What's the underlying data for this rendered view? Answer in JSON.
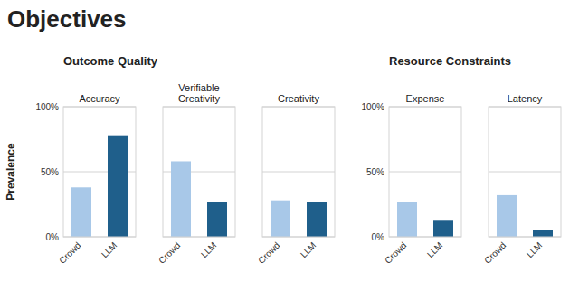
{
  "title": "Objectives",
  "chart_data": [
    {
      "type": "bar",
      "title": "Accuracy",
      "subtitle": "Outcome Quality",
      "ylabel": "Prevalence",
      "categories": [
        "Crowd",
        "LLM"
      ],
      "values": [
        38,
        78
      ],
      "colors": [
        "#a8c8e8",
        "#1f5f8b"
      ],
      "ylim": [
        0,
        100
      ],
      "yticks": [
        {
          "value": 0,
          "label": "0%"
        },
        {
          "value": 50,
          "label": "50%"
        },
        {
          "value": 100,
          "label": "100%"
        }
      ],
      "grid": true
    },
    {
      "type": "bar",
      "title": "Verifiable\nCreativity",
      "categories": [
        "Crowd",
        "LLM"
      ],
      "values": [
        58,
        27
      ],
      "colors": [
        "#a8c8e8",
        "#1f5f8b"
      ],
      "ylim": [
        0,
        100
      ],
      "yticks": [
        0,
        50,
        100
      ],
      "grid": true,
      "tick_labels": "x"
    },
    {
      "type": "bar",
      "title": "Creativity",
      "categories": [
        "Crowd",
        "LLM"
      ],
      "values": [
        28,
        27
      ],
      "colors": [
        "#a8c8e8",
        "#1f5f8b"
      ],
      "ylim": [
        0,
        100
      ],
      "yticks": [
        0,
        50,
        100
      ],
      "grid": true,
      "tick_labels": "x"
    },
    {
      "type": "bar",
      "title": "Expense",
      "subtitle": "Resource Constraints",
      "categories": [
        "Crowd",
        "LLM"
      ],
      "values": [
        27,
        13
      ],
      "colors": [
        "#a8c8e8",
        "#1f5f8b"
      ],
      "ylim": [
        0,
        100
      ],
      "yticks": [
        {
          "value": 0,
          "label": "0%"
        },
        {
          "value": 50,
          "label": "50%"
        },
        {
          "value": 100,
          "label": "100%"
        }
      ],
      "grid": true
    },
    {
      "type": "bar",
      "title": "Latency",
      "categories": [
        "Crowd",
        "LLM"
      ],
      "values": [
        32,
        5
      ],
      "colors": [
        "#a8c8e8",
        "#1f5f8b"
      ],
      "ylim": [
        0,
        100
      ],
      "yticks": [
        0,
        50,
        100
      ],
      "grid": true,
      "tick_labels": "x"
    }
  ]
}
